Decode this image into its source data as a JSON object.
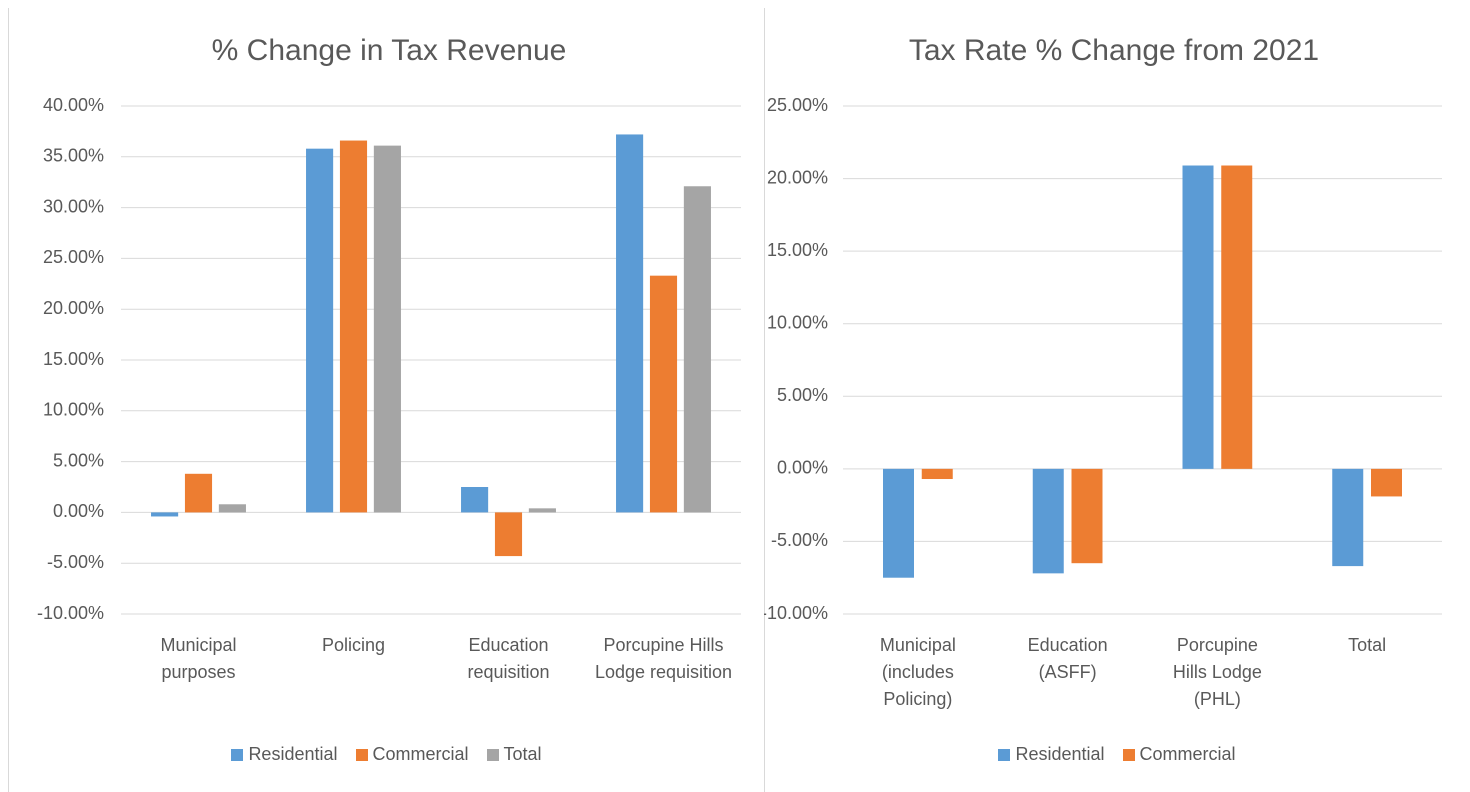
{
  "chart_data": [
    {
      "type": "bar",
      "title": "% Change in Tax Revenue",
      "categories": [
        "Municipal purposes",
        "Policing",
        "Education requisition",
        "Porcupine Hills Lodge requisition"
      ],
      "series": [
        {
          "name": "Residential",
          "color": "#5b9bd5",
          "values": [
            -0.4,
            35.8,
            2.5,
            37.2
          ]
        },
        {
          "name": "Commercial",
          "color": "#ed7d31",
          "values": [
            3.8,
            36.6,
            -4.3,
            23.3
          ]
        },
        {
          "name": "Total",
          "color": "#a5a5a5",
          "values": [
            0.8,
            36.1,
            0.4,
            32.1
          ]
        }
      ],
      "ylim": [
        -10,
        40
      ],
      "yticks": [
        {
          "value": -10,
          "label": "-10.00%"
        },
        {
          "value": -5,
          "label": "-5.00%"
        },
        {
          "value": 0,
          "label": "0.00%"
        },
        {
          "value": 5,
          "label": "5.00%"
        },
        {
          "value": 10,
          "label": "10.00%"
        },
        {
          "value": 15,
          "label": "15.00%"
        },
        {
          "value": 20,
          "label": "20.00%"
        },
        {
          "value": 25,
          "label": "25.00%"
        },
        {
          "value": 30,
          "label": "30.00%"
        },
        {
          "value": 35,
          "label": "35.00%"
        },
        {
          "value": 40,
          "label": "40.00%"
        }
      ],
      "grid": true,
      "legend": "bottom"
    },
    {
      "type": "bar",
      "title": "Tax Rate % Change from 2021",
      "categories": [
        "Municipal (includes Policing)",
        "Education (ASFF)",
        "Porcupine Hills Lodge (PHL)",
        "Total"
      ],
      "series": [
        {
          "name": "Residential",
          "color": "#5b9bd5",
          "values": [
            -7.5,
            -7.2,
            20.9,
            -6.7
          ]
        },
        {
          "name": "Commercial",
          "color": "#ed7d31",
          "values": [
            -0.7,
            -6.5,
            20.9,
            -1.9
          ]
        }
      ],
      "ylim": [
        -10,
        25
      ],
      "yticks": [
        {
          "value": -10,
          "label": "-10.00%"
        },
        {
          "value": -5,
          "label": "-5.00%"
        },
        {
          "value": 0,
          "label": "0.00%"
        },
        {
          "value": 5,
          "label": "5.00%"
        },
        {
          "value": 10,
          "label": "10.00%"
        },
        {
          "value": 15,
          "label": "15.00%"
        },
        {
          "value": 20,
          "label": "20.00%"
        },
        {
          "value": 25,
          "label": "25.00%"
        }
      ],
      "grid": true,
      "legend": "bottom"
    }
  ]
}
